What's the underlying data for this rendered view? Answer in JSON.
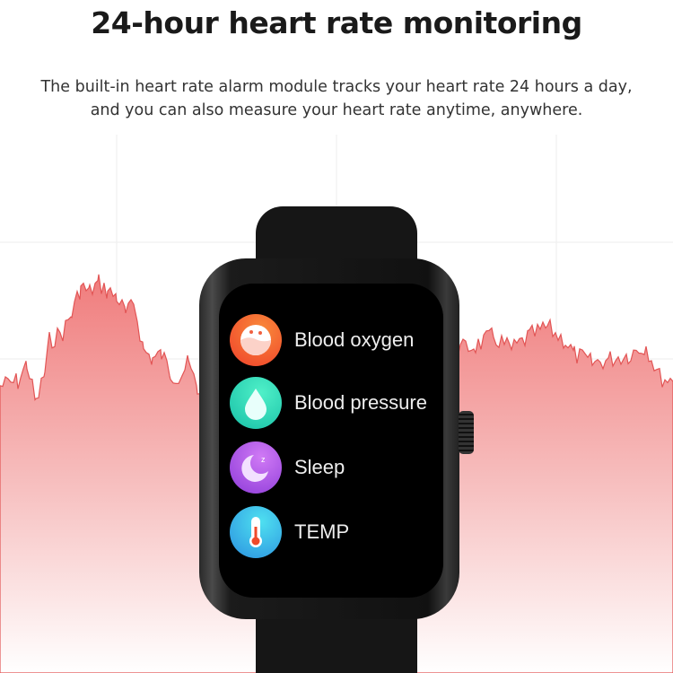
{
  "header": {
    "title": "24-hour heart rate monitoring",
    "subtitle_line1": "The built-in heart rate alarm module tracks your heart rate 24 hours a day,",
    "subtitle_line2": "and you can also measure your heart rate anytime, anywhere."
  },
  "watch": {
    "menu": [
      {
        "label": "Blood oxygen",
        "icon": "blood-oxygen-icon",
        "color": "#f0532b"
      },
      {
        "label": "Blood pressure",
        "icon": "water-drop-icon",
        "color": "#2fd6b4"
      },
      {
        "label": "Sleep",
        "icon": "moon-sleep-icon",
        "color": "#a24ee0"
      },
      {
        "label": "TEMP",
        "icon": "thermometer-icon",
        "color": "#2ab4e8"
      }
    ]
  },
  "colors": {
    "wave_top": "#f08080",
    "wave_bottom": "#ffffff"
  }
}
